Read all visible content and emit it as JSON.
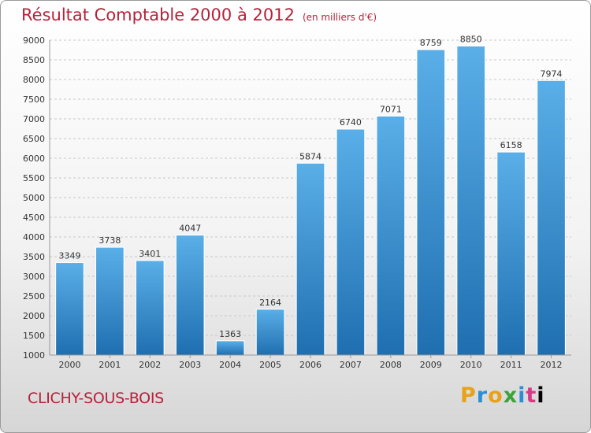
{
  "header": {
    "title": "Résultat Comptable 2000 à 2012",
    "subtitle": "(en milliers d'€)"
  },
  "footer": {
    "city": "CLICHY-SOUS-BOIS",
    "brand_letters": [
      "P",
      "r",
      "o",
      "x",
      "i",
      "t",
      "i"
    ]
  },
  "colors": {
    "bar_top": "#5aafe8",
    "bar_bottom": "#1f6fb0",
    "title": "#b5223a",
    "grid": "#c8c8c8"
  },
  "chart_data": {
    "type": "bar",
    "title": "Résultat Comptable 2000 à 2012",
    "subtitle": "(en milliers d'€)",
    "xlabel": "",
    "ylabel": "",
    "categories": [
      "2000",
      "2001",
      "2002",
      "2003",
      "2004",
      "2005",
      "2006",
      "2007",
      "2008",
      "2009",
      "2010",
      "2011",
      "2012"
    ],
    "values": [
      3349,
      3738,
      3401,
      4047,
      1363,
      2164,
      5874,
      6740,
      7071,
      8759,
      8850,
      6158,
      7974
    ],
    "ylim": [
      1000,
      9000
    ],
    "yticks": [
      1000,
      1500,
      2000,
      2500,
      3000,
      3500,
      4000,
      4500,
      5000,
      5500,
      6000,
      6500,
      7000,
      7500,
      8000,
      8500,
      9000
    ],
    "grid": true,
    "data_labels": true
  }
}
